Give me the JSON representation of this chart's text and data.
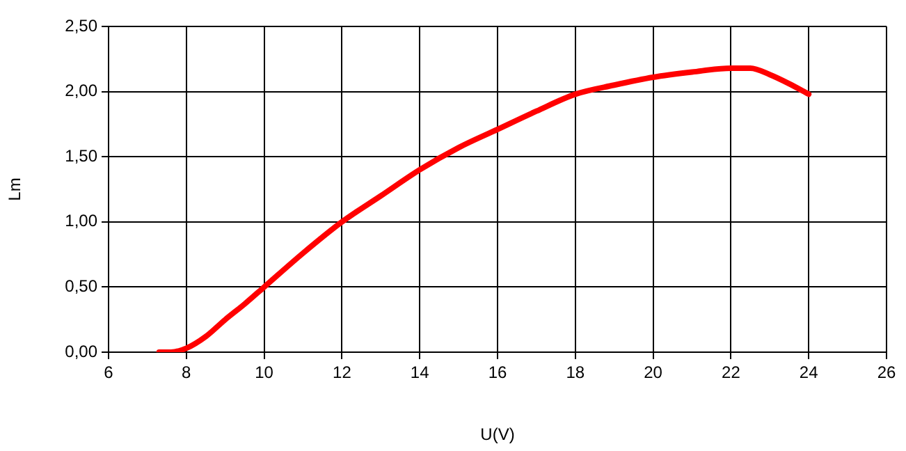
{
  "chart_data": {
    "type": "line",
    "xlabel": "U(V)",
    "ylabel": "Lm",
    "x": [
      7.3,
      7.6,
      8,
      8.5,
      9,
      9.5,
      10,
      11,
      12,
      13,
      14,
      15,
      16,
      17,
      18,
      19,
      20,
      21,
      22,
      22.5,
      23,
      23.5,
      24
    ],
    "series": [
      {
        "color": "#ff0000",
        "values": [
          0,
          0,
          0.03,
          0.12,
          0.25,
          0.37,
          0.5,
          0.76,
          1.0,
          1.2,
          1.4,
          1.57,
          1.71,
          1.85,
          1.98,
          2.05,
          2.11,
          2.15,
          2.18,
          2.18,
          2.13,
          2.06,
          1.98
        ]
      }
    ],
    "xlim": [
      6,
      26
    ],
    "xticks": [
      6,
      8,
      10,
      12,
      14,
      16,
      18,
      20,
      22,
      24,
      26
    ],
    "ylim": [
      0,
      2.5
    ],
    "yticks": [
      {
        "value": 0,
        "label": "0,00"
      },
      {
        "value": 0.5,
        "label": "0,50"
      },
      {
        "value": 1,
        "label": "1,00"
      },
      {
        "value": 1.5,
        "label": "1,50"
      },
      {
        "value": 2,
        "label": "2,00"
      },
      {
        "value": 2.5,
        "label": "2,50"
      }
    ],
    "grid": true,
    "legend": false,
    "marker": "none",
    "line_style": "solid"
  }
}
